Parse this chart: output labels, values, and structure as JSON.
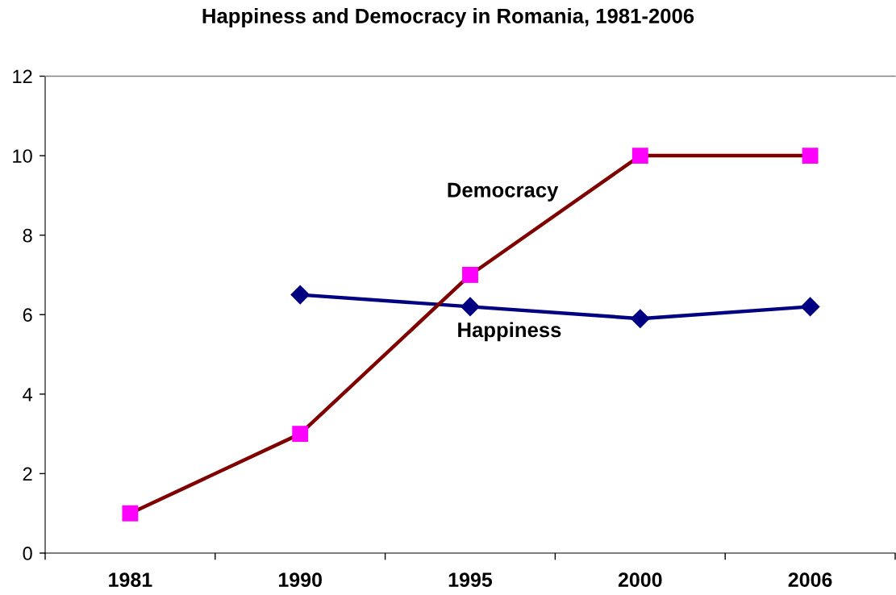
{
  "chart_data": {
    "type": "line",
    "title": "Happiness and Democracy in Romania, 1981-2006",
    "categories": [
      "1981",
      "1990",
      "1995",
      "2000",
      "2006"
    ],
    "series": [
      {
        "name": "Happiness",
        "color": "#000080",
        "colors": [
          "#000080",
          "#000080",
          "#000080",
          "#000080",
          "#000080"
        ],
        "marker": "diamond",
        "values": [
          null,
          6.5,
          6.2,
          5.9,
          6.2
        ]
      },
      {
        "name": "Democracy",
        "color": "#800000",
        "colors": [
          "#ff00ff",
          "#ff00ff",
          "#ff00ff",
          "#ff00ff",
          "#ff00ff"
        ],
        "marker": "square",
        "values": [
          1,
          3,
          7,
          10,
          10
        ]
      }
    ],
    "ylim": [
      0,
      12
    ],
    "yticks": [
      0,
      2,
      4,
      6,
      8,
      10,
      12
    ],
    "line_style": "solid"
  }
}
